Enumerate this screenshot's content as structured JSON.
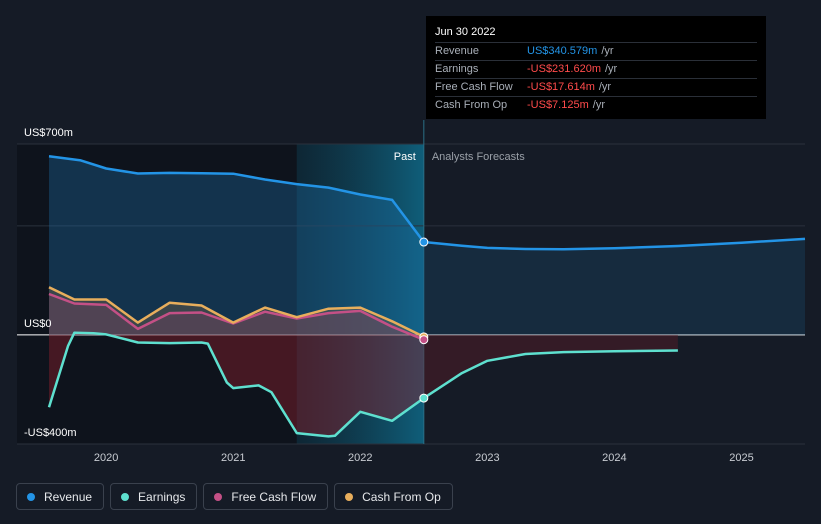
{
  "chart_data": {
    "type": "area",
    "y_labels": {
      "top": "US$700m",
      "zero": "US$0",
      "bottom": "-US$400m"
    },
    "ylim": [
      -400,
      700
    ],
    "xlim": [
      2019.55,
      2025.5
    ],
    "x_ticks": [
      "2020",
      "2021",
      "2022",
      "2023",
      "2024",
      "2025"
    ],
    "x_tick_values": [
      2020,
      2021,
      2022,
      2023,
      2024,
      2025
    ],
    "past_label": "Past",
    "forecast_label": "Analysts Forecasts",
    "divider_x": 2022.5,
    "highlight_start": 2021.5,
    "grid": true,
    "legend_position": "bottom-left",
    "series": [
      {
        "name": "Revenue",
        "color": "#2394e6",
        "points": [
          [
            2019.55,
            655
          ],
          [
            2019.8,
            640
          ],
          [
            2020.0,
            610
          ],
          [
            2020.25,
            592
          ],
          [
            2020.5,
            594
          ],
          [
            2020.75,
            593
          ],
          [
            2021.0,
            591
          ],
          [
            2021.25,
            570
          ],
          [
            2021.5,
            553
          ],
          [
            2021.75,
            540
          ],
          [
            2022.0,
            515
          ],
          [
            2022.25,
            495
          ],
          [
            2022.5,
            340.6
          ]
        ],
        "forecast": [
          [
            2022.5,
            340.6
          ],
          [
            2022.8,
            327
          ],
          [
            2023.0,
            319
          ],
          [
            2023.3,
            315
          ],
          [
            2023.6,
            314
          ],
          [
            2024.0,
            318
          ],
          [
            2024.5,
            326
          ],
          [
            2025.0,
            338
          ],
          [
            2025.5,
            352
          ]
        ]
      },
      {
        "name": "Earnings",
        "color": "#5ee0cf",
        "points": [
          [
            2019.55,
            -265
          ],
          [
            2019.7,
            -40
          ],
          [
            2019.75,
            8
          ],
          [
            2019.9,
            6
          ],
          [
            2020.0,
            2
          ],
          [
            2020.25,
            -28
          ],
          [
            2020.5,
            -30
          ],
          [
            2020.75,
            -28
          ],
          [
            2020.8,
            -32
          ],
          [
            2020.95,
            -175
          ],
          [
            2021.0,
            -195
          ],
          [
            2021.2,
            -185
          ],
          [
            2021.3,
            -210
          ],
          [
            2021.5,
            -360
          ],
          [
            2021.75,
            -372
          ],
          [
            2021.8,
            -370
          ],
          [
            2022.0,
            -282
          ],
          [
            2022.25,
            -315
          ],
          [
            2022.5,
            -231.6
          ]
        ],
        "forecast": [
          [
            2022.5,
            -231.6
          ],
          [
            2022.8,
            -140
          ],
          [
            2023.0,
            -95
          ],
          [
            2023.3,
            -70
          ],
          [
            2023.6,
            -63
          ],
          [
            2024.0,
            -60
          ],
          [
            2024.5,
            -57
          ]
        ]
      },
      {
        "name": "Free Cash Flow",
        "color": "#c45086",
        "points": [
          [
            2019.55,
            150
          ],
          [
            2019.75,
            115
          ],
          [
            2020.0,
            110
          ],
          [
            2020.25,
            22
          ],
          [
            2020.5,
            80
          ],
          [
            2020.75,
            82
          ],
          [
            2021.0,
            42
          ],
          [
            2021.25,
            85
          ],
          [
            2021.5,
            60
          ],
          [
            2021.75,
            80
          ],
          [
            2022.0,
            88
          ],
          [
            2022.25,
            30
          ],
          [
            2022.5,
            -17.6
          ]
        ],
        "forecast": []
      },
      {
        "name": "Cash From Op",
        "color": "#e8ae5c",
        "points": [
          [
            2019.55,
            175
          ],
          [
            2019.75,
            130
          ],
          [
            2020.0,
            130
          ],
          [
            2020.25,
            45
          ],
          [
            2020.5,
            118
          ],
          [
            2020.75,
            108
          ],
          [
            2021.0,
            45
          ],
          [
            2021.25,
            100
          ],
          [
            2021.5,
            65
          ],
          [
            2021.75,
            96
          ],
          [
            2022.0,
            100
          ],
          [
            2022.25,
            50
          ],
          [
            2022.5,
            -7.1
          ]
        ],
        "forecast": []
      }
    ]
  },
  "tooltip": {
    "date": "Jun 30 2022",
    "rows": [
      {
        "label": "Revenue",
        "value": "US$340.579m",
        "unit": "/yr",
        "color": "#2394e6"
      },
      {
        "label": "Earnings",
        "value": "-US$231.620m",
        "unit": "/yr",
        "color": "#ff4b4b"
      },
      {
        "label": "Free Cash Flow",
        "value": "-US$17.614m",
        "unit": "/yr",
        "color": "#ff4b4b"
      },
      {
        "label": "Cash From Op",
        "value": "-US$7.125m",
        "unit": "/yr",
        "color": "#ff4b4b"
      }
    ]
  },
  "legend": [
    {
      "label": "Revenue",
      "color": "#2394e6"
    },
    {
      "label": "Earnings",
      "color": "#5ee0cf"
    },
    {
      "label": "Free Cash Flow",
      "color": "#c45086"
    },
    {
      "label": "Cash From Op",
      "color": "#e8ae5c"
    }
  ]
}
